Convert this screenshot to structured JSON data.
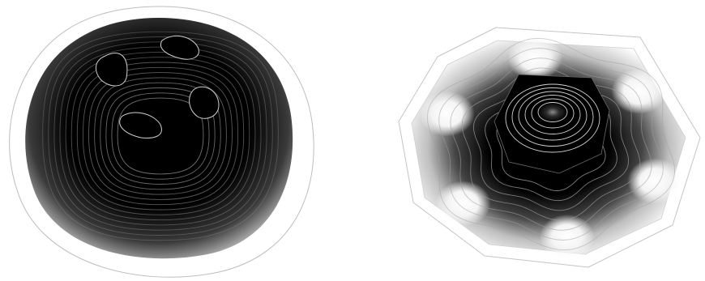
{
  "figure": {
    "background": "#ffffff",
    "contour_color": "#bdbdbd",
    "panels": [
      {
        "id": "left",
        "description_visible_text": "",
        "shape": "rounded-square",
        "dark_tone": "#000000",
        "light_tone": "#ffffff",
        "inner_spots": 4
      },
      {
        "id": "right",
        "description_visible_text": "",
        "shape": "hexagon",
        "dark_tone": "#000000",
        "light_tone": "#ffffff",
        "outer_lobes": 6,
        "center_rings": 6
      }
    ]
  }
}
